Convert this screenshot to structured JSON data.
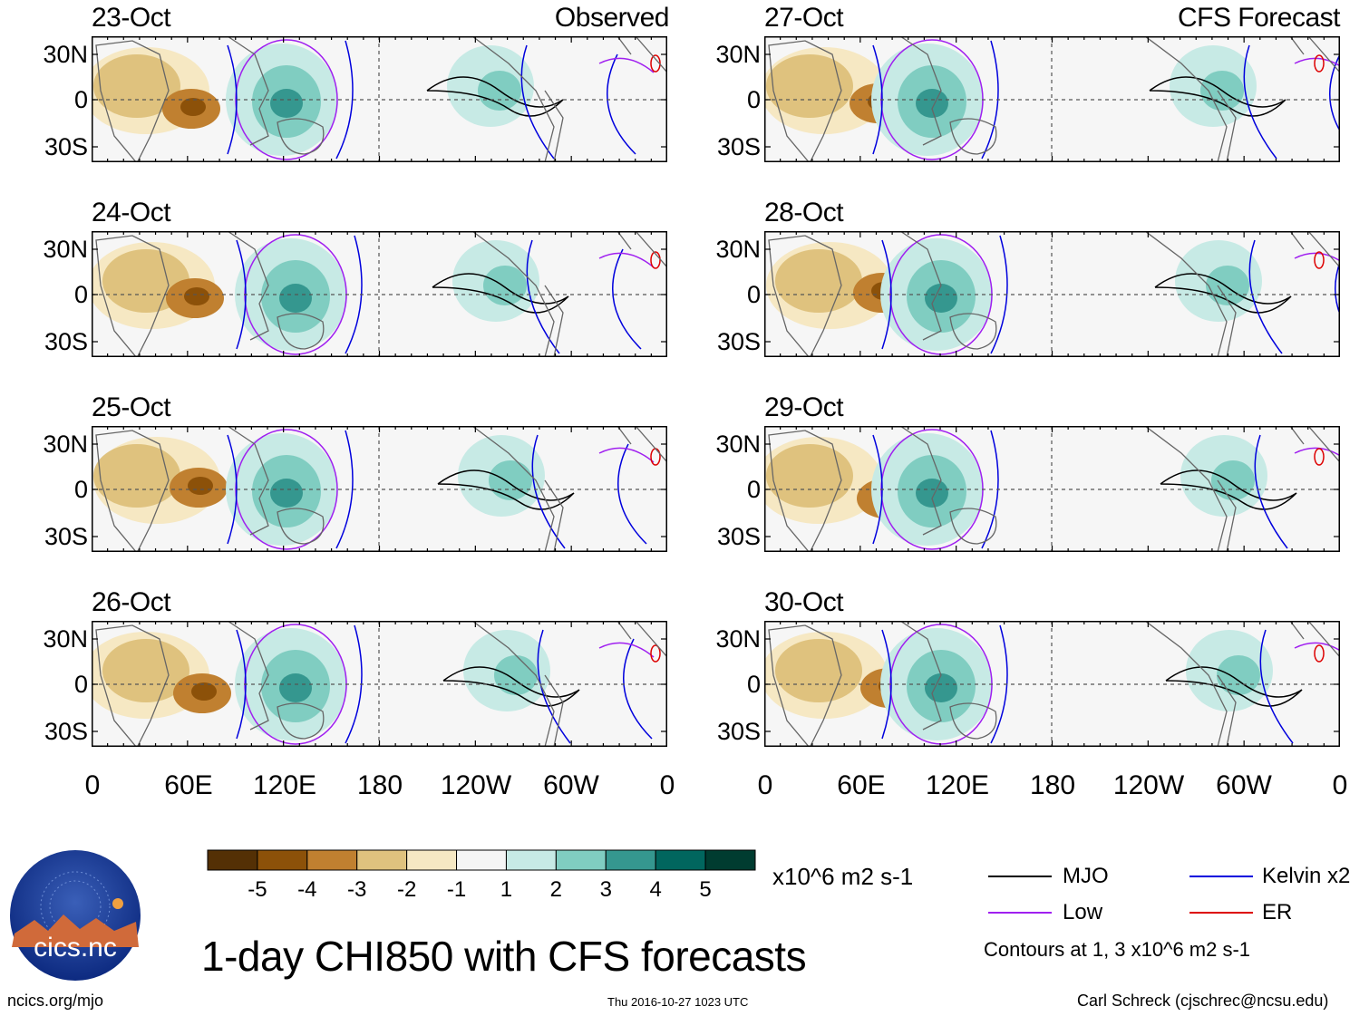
{
  "title": "1-day CHI850 with CFS forecasts",
  "observed_label": "Observed",
  "forecast_label": "CFS Forecast",
  "panels_left": [
    "23-Oct",
    "24-Oct",
    "25-Oct",
    "26-Oct"
  ],
  "panels_right": [
    "27-Oct",
    "28-Oct",
    "29-Oct",
    "30-Oct"
  ],
  "lat_labels": [
    "30N",
    "0",
    "30S"
  ],
  "lon_labels": [
    "0",
    "60E",
    "120E",
    "180",
    "120W",
    "60W",
    "0"
  ],
  "colorbar": {
    "ticks": [
      "-5",
      "-4",
      "-3",
      "-2",
      "-1",
      "1",
      "2",
      "3",
      "4",
      "5"
    ],
    "colors": [
      "#543005",
      "#8c5109",
      "#c08030",
      "#dfc27e",
      "#f6e8c3",
      "#f5f5f5",
      "#c7eae5",
      "#80cdc1",
      "#35978f",
      "#01665e",
      "#003c30"
    ],
    "unit": "x10^6 m2 s-1"
  },
  "legend": {
    "items": [
      {
        "label": "MJO",
        "color": "#000000"
      },
      {
        "label": "Kelvin x2",
        "color": "#0000dd"
      },
      {
        "label": "Low",
        "color": "#a020f0"
      },
      {
        "label": "ER",
        "color": "#dd0000"
      }
    ],
    "note": "Contours at 1, 3 x10^6 m2 s-1"
  },
  "logo": {
    "text": "cics.nc"
  },
  "footer": {
    "left": "ncics.org/mjo",
    "center": "Thu 2016-10-27 1023 UTC",
    "right": "Carl Schreck (cjschrec@ncsu.edu)"
  }
}
